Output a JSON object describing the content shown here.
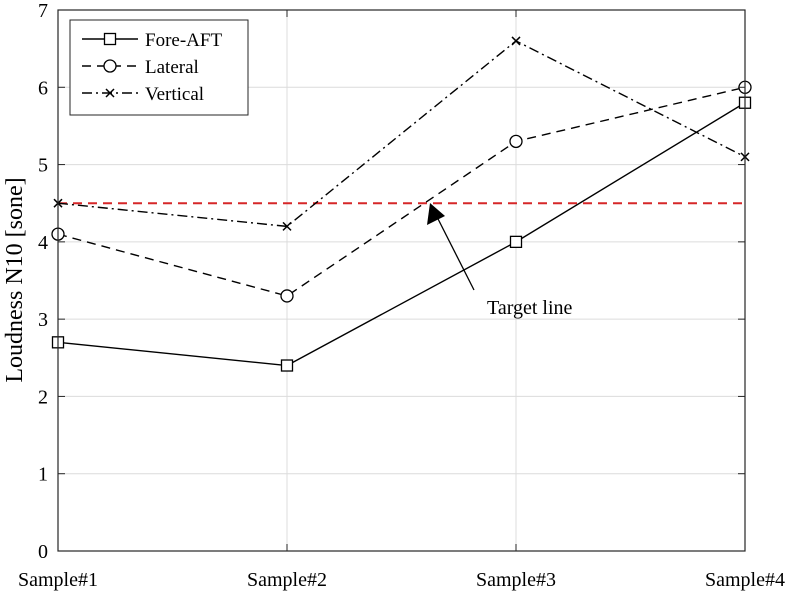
{
  "chart_data": {
    "type": "line",
    "title": "",
    "xlabel": "",
    "ylabel": "Loudness N10 [sone]",
    "categories": [
      "Sample#1",
      "Sample#2",
      "Sample#3",
      "Sample#4"
    ],
    "ylim": [
      0,
      7
    ],
    "yticks": [
      "0",
      "1",
      "2",
      "3",
      "4",
      "5",
      "6",
      "7"
    ],
    "grid": true,
    "legend_position": "top-left",
    "series": [
      {
        "name": "Fore-AFT",
        "values": [
          2.7,
          2.4,
          4.0,
          5.8
        ],
        "line_style": "solid",
        "marker": "square",
        "color": "#000000"
      },
      {
        "name": "Lateral",
        "values": [
          4.1,
          3.3,
          5.3,
          6.0
        ],
        "line_style": "dashed",
        "marker": "circle",
        "color": "#000000"
      },
      {
        "name": "Vertical",
        "values": [
          4.5,
          4.2,
          6.6,
          5.1
        ],
        "line_style": "dash-dot",
        "marker": "x",
        "color": "#000000"
      }
    ],
    "reference_line": {
      "value": 4.5,
      "color": "#d62728",
      "line_style": "dashed"
    },
    "annotation": {
      "text": "Target line"
    }
  }
}
